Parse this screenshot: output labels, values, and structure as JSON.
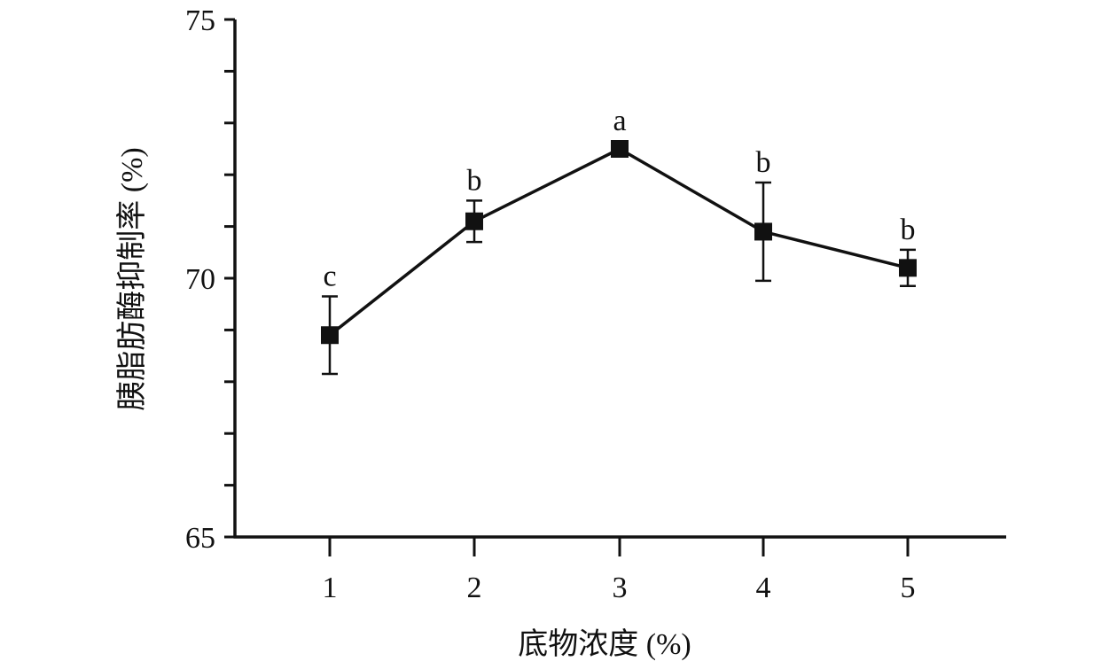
{
  "chart_data": {
    "type": "line",
    "x": [
      1,
      2,
      3,
      4,
      5
    ],
    "x_tick_labels": [
      "1",
      "2",
      "3",
      "4",
      "5"
    ],
    "series": [
      {
        "values": [
          68.9,
          71.1,
          72.5,
          70.9,
          70.2
        ],
        "error": [
          0.75,
          0.4,
          0.15,
          0.95,
          0.35
        ],
        "significance": [
          "c",
          "b",
          "a",
          "b",
          "b"
        ],
        "marker": "square",
        "color": "#111111"
      }
    ],
    "ylim": [
      65,
      75
    ],
    "y_tick_labels": [
      "65",
      "70",
      "75"
    ],
    "y_minor_step": 1,
    "xlabel": "底物浓度 (%)",
    "ylabel": "胰脂肪酶抑制率 (%)",
    "grid": false,
    "legend": "none"
  }
}
